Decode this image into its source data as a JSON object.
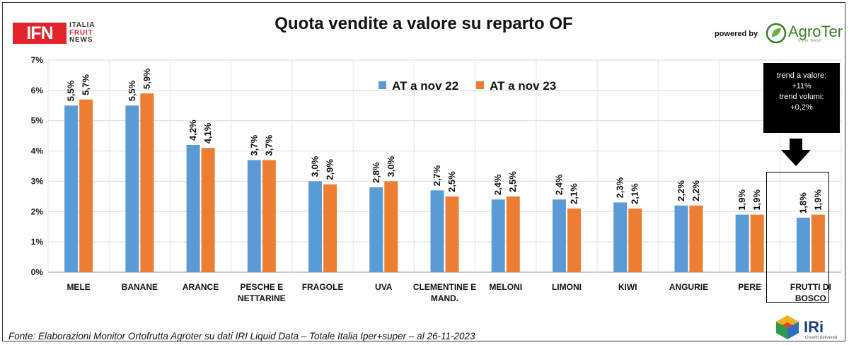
{
  "header": {
    "title": "Quota vendite a valore su reparto OF",
    "powered_by": "powered by"
  },
  "logos": {
    "ifn": {
      "main": "IFN",
      "lines": [
        "ITALIA",
        "FRUIT",
        "NEWS"
      ],
      "color": "#e3232a"
    },
    "agroter": {
      "name": "AgroTer",
      "tagline": "think fresh",
      "color": "#3a7d2c"
    },
    "iri": {
      "name": "IRi",
      "tagline": "Growth delivered."
    }
  },
  "trend_box": {
    "lines": [
      "trend a valore:",
      "+11%",
      "trend volumi:",
      "+0,2%"
    ]
  },
  "footer": {
    "source": "Fonte: Elaborazioni Monitor Ortofrutta Agroter su dati IRI Liquid Data – Totale Italia Iper+super – al 26-11-2023"
  },
  "chart_data": {
    "type": "bar",
    "title": "Quota vendite a valore su reparto OF",
    "categories": [
      "MELE",
      "BANANE",
      "ARANCE",
      "PESCHE E\nNETTARINE",
      "FRAGOLE",
      "UVA",
      "CLEMENTINE E\nMAND.",
      "MELONI",
      "LIMONI",
      "KIWI",
      "ANGURIE",
      "PERE",
      "FRUTTI DI\nBOSCO"
    ],
    "series": [
      {
        "name": "AT a nov 22",
        "color": "#5b9bd5",
        "values": [
          5.5,
          5.5,
          4.2,
          3.7,
          3.0,
          2.8,
          2.7,
          2.4,
          2.4,
          2.3,
          2.2,
          1.9,
          1.8
        ]
      },
      {
        "name": "AT a nov 23",
        "color": "#ed7d31",
        "values": [
          5.7,
          5.9,
          4.1,
          3.7,
          2.9,
          3.0,
          2.5,
          2.5,
          2.1,
          2.1,
          2.2,
          1.9,
          1.9
        ]
      }
    ],
    "data_labels": [
      [
        "5,5%",
        "5,5%",
        "4,2%",
        "3,7%",
        "3,0%",
        "2,8%",
        "2,7%",
        "2,4%",
        "2,4%",
        "2,3%",
        "2,2%",
        "1,9%",
        "1,8%"
      ],
      [
        "5,7%",
        "5,9%",
        "4,1%",
        "3,7%",
        "2,9%",
        "3,0%",
        "2,5%",
        "2,5%",
        "2,1%",
        "2,1%",
        "2,2%",
        "1,9%",
        "1,9%"
      ]
    ],
    "y_ticks": [
      "0%",
      "1%",
      "2%",
      "3%",
      "4%",
      "5%",
      "6%",
      "7%"
    ],
    "ylim": [
      0,
      7
    ],
    "grid": true,
    "legend_position": "top-center",
    "highlighted_category": "FRUTTI DI\nBOSCO"
  }
}
